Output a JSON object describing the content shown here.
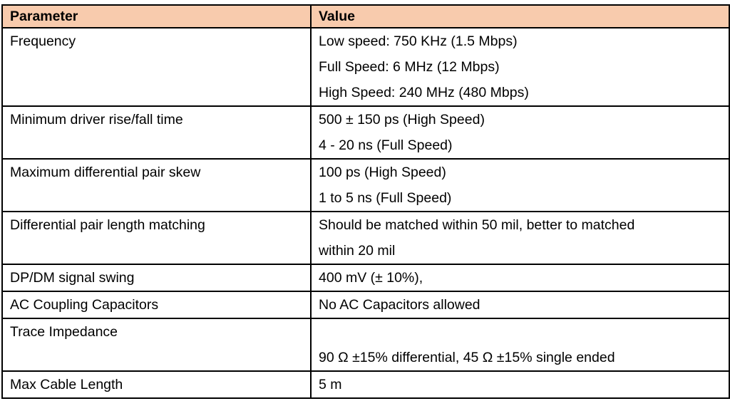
{
  "table": {
    "headers": [
      "Parameter",
      "Value"
    ],
    "rows": [
      {
        "parameter": "Frequency",
        "values": [
          "Low speed: 750 KHz (1.5 Mbps)",
          "Full Speed: 6 MHz (12 Mbps)",
          "High Speed: 240 MHz (480 Mbps)"
        ]
      },
      {
        "parameter": "Minimum driver rise/fall time",
        "values": [
          "500 ± 150 ps (High Speed)",
          "4 - 20 ns (Full Speed)"
        ]
      },
      {
        "parameter": "Maximum differential pair skew",
        "values": [
          "100 ps (High Speed)",
          "1 to 5 ns (Full Speed)"
        ]
      },
      {
        "parameter": "Differential pair length matching",
        "values": [
          "Should be matched within 50 mil, better to matched",
          "within 20 mil"
        ]
      },
      {
        "parameter": "DP/DM signal swing",
        "values": [
          "400 mV (± 10%),"
        ]
      },
      {
        "parameter": "AC Coupling Capacitors",
        "values": [
          "No AC Capacitors allowed"
        ]
      },
      {
        "parameter": "Trace Impedance",
        "values": [
          "",
          "90 Ω ±15% differential, 45 Ω ±15% single ended"
        ]
      },
      {
        "parameter": "Max Cable Length",
        "values": [
          "5 m"
        ]
      }
    ]
  },
  "colors": {
    "header_background": "#f8cbad",
    "border": "#000000"
  }
}
